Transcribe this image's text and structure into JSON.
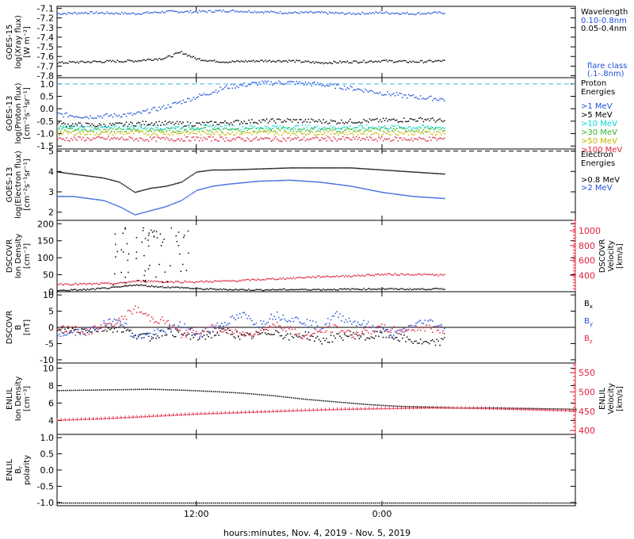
{
  "colors": {
    "black": "#000000",
    "blue": "#1f4fd8",
    "cyan": "#00d8d8",
    "green": "#2db82d",
    "yellow": "#c8b400",
    "orange": "#f07a10",
    "red": "#e0203a",
    "dashed_cyan": "#3ab8e8"
  },
  "xaxis": {
    "label": "hours:minutes, Nov.  4, 2019 - Nov.  5, 2019",
    "ticks": [
      "12:00",
      "0:00"
    ],
    "tick_hours": [
      12,
      24
    ],
    "range_hours": [
      3,
      36.5
    ]
  },
  "chart_data": [
    {
      "type": "scatter",
      "panel": "goes15-xray",
      "ylabel": [
        "GOES-15",
        "log(Xray flux)",
        "[W m⁻²]"
      ],
      "ylim": [
        -7.82,
        -7.08
      ],
      "yticks": [
        -7.1,
        -7.2,
        -7.3,
        -7.4,
        -7.5,
        -7.6,
        -7.7,
        -7.8
      ],
      "ytick_labels": [
        "-7.1",
        "-7.2",
        "-7.3",
        "-7.4",
        "-7.5",
        "-7.6",
        "-7.7",
        "-7.8"
      ],
      "legend_title": "Wavelength",
      "series": [
        {
          "name": "0.10-0.8nm",
          "color_key": "blue",
          "x": [
            3,
            5,
            8,
            10,
            12,
            14,
            16,
            18,
            20,
            22,
            24,
            26,
            28
          ],
          "y": [
            -7.15,
            -7.14,
            -7.15,
            -7.13,
            -7.13,
            -7.12,
            -7.13,
            -7.14,
            -7.14,
            -7.15,
            -7.14,
            -7.15,
            -7.14
          ]
        },
        {
          "name": "0.05-0.4nm",
          "color_key": "black",
          "x": [
            3,
            5,
            8,
            10,
            11,
            12,
            13,
            14,
            16,
            18,
            20,
            22,
            24,
            26,
            28
          ],
          "y": [
            -7.66,
            -7.65,
            -7.64,
            -7.61,
            -7.55,
            -7.62,
            -7.64,
            -7.65,
            -7.64,
            -7.64,
            -7.66,
            -7.65,
            -7.64,
            -7.65,
            -7.64
          ]
        }
      ],
      "threshold_label": [
        "flare class",
        "(.1-.8nm)"
      ]
    },
    {
      "type": "scatter",
      "panel": "goes13-proton",
      "ylabel": [
        "GOES-13",
        "log(Proton flux)",
        "[cm⁻²s⁻¹sr⁻¹]"
      ],
      "ylim": [
        -1.62,
        1.25
      ],
      "yticks": [
        1.0,
        0.5,
        0.0,
        -0.5,
        -1.0,
        -1.5
      ],
      "ytick_labels": [
        "1.0",
        "0.5",
        "0.0",
        "-0.5",
        "-1.0",
        "-1.5"
      ],
      "dashed_line_y": 1.0,
      "legend_title": [
        "Proton",
        "Energies"
      ],
      "series": [
        {
          "name": ">1 MeV",
          "color_key": "blue",
          "x": [
            3,
            5,
            8,
            10,
            12,
            14,
            16,
            18,
            20,
            22,
            24,
            26,
            28
          ],
          "y": [
            -0.2,
            -0.3,
            -0.2,
            0.1,
            0.5,
            0.9,
            1.05,
            1.08,
            1.0,
            0.85,
            0.65,
            0.5,
            0.4
          ]
        },
        {
          "name": ">5 MeV",
          "color_key": "black",
          "x": [
            3,
            6,
            9,
            12,
            15,
            18,
            21,
            24,
            27,
            28
          ],
          "y": [
            -0.6,
            -0.65,
            -0.55,
            -0.6,
            -0.5,
            -0.45,
            -0.5,
            -0.45,
            -0.4,
            -0.5
          ]
        },
        {
          "name": ">10 MeV",
          "color_key": "cyan",
          "x": [
            3,
            6,
            9,
            12,
            15,
            18,
            21,
            24,
            27,
            28
          ],
          "y": [
            -0.72,
            -0.75,
            -0.72,
            -0.73,
            -0.72,
            -0.72,
            -0.73,
            -0.72,
            -0.72,
            -0.73
          ]
        },
        {
          "name": ">30 MeV",
          "color_key": "green",
          "x": [
            3,
            6,
            9,
            12,
            15,
            18,
            21,
            24,
            27,
            28
          ],
          "y": [
            -0.82,
            -0.83,
            -0.82,
            -0.82,
            -0.83,
            -0.82,
            -0.82,
            -0.82,
            -0.83,
            -0.82
          ]
        },
        {
          "name": ">50 MeV",
          "color_key": "yellow",
          "x": [
            3,
            6,
            9,
            12,
            15,
            18,
            21,
            24,
            27,
            28
          ],
          "y": [
            -0.95,
            -0.95,
            -0.95,
            -0.95,
            -0.95,
            -0.95,
            -0.95,
            -0.95,
            -0.95,
            -0.95
          ]
        },
        {
          "name": ">100 MeV",
          "color_key": "red",
          "x": [
            3,
            6,
            9,
            12,
            15,
            18,
            21,
            24,
            27,
            28
          ],
          "y": [
            -1.2,
            -1.18,
            -1.2,
            -1.19,
            -1.2,
            -1.2,
            -1.19,
            -1.2,
            -1.2,
            -1.19
          ]
        }
      ]
    },
    {
      "type": "line",
      "panel": "goes13-electron",
      "ylabel": [
        "GOES-13",
        "log(Electron flux)",
        "[cm⁻²s⁻¹sr⁻¹]"
      ],
      "ylim": [
        1.6,
        5.1
      ],
      "yticks": [
        5,
        4,
        3,
        2
      ],
      "ytick_labels": [
        "5",
        "4",
        "3",
        "2"
      ],
      "dashed_line_y": 5.0,
      "legend_title": [
        "Electron",
        "Energies"
      ],
      "series": [
        {
          "name": ">0.8 MeV",
          "color_key": "black",
          "x": [
            3,
            4,
            5,
            6,
            7,
            8,
            9,
            10,
            11,
            12,
            13,
            14,
            16,
            18,
            20,
            22,
            24,
            26,
            28
          ],
          "y": [
            4.0,
            3.9,
            3.8,
            3.7,
            3.5,
            3.0,
            3.2,
            3.3,
            3.5,
            4.0,
            4.1,
            4.1,
            4.15,
            4.2,
            4.2,
            4.2,
            4.1,
            4.0,
            3.9
          ]
        },
        {
          "name": ">2 MeV",
          "color_key": "blue",
          "x": [
            3,
            4,
            5,
            6,
            7,
            8,
            9,
            10,
            11,
            12,
            13,
            14,
            16,
            18,
            20,
            22,
            24,
            26,
            28
          ],
          "y": [
            2.8,
            2.8,
            2.7,
            2.6,
            2.3,
            1.9,
            2.1,
            2.3,
            2.6,
            3.1,
            3.3,
            3.4,
            3.55,
            3.6,
            3.5,
            3.3,
            3.0,
            2.8,
            2.7
          ]
        }
      ]
    },
    {
      "type": "scatter",
      "panel": "dscovr-density-velocity",
      "ylabel": [
        "DSCOVR",
        "Ion Density",
        "[cm⁻³]"
      ],
      "ylim": [
        0,
        210
      ],
      "yticks": [
        200,
        150,
        100,
        50,
        0
      ],
      "ytick_labels": [
        "200",
        "150",
        "100",
        "50",
        "0"
      ],
      "ylabel_right": [
        "DSCOVR",
        "Velocity",
        "[km/s]"
      ],
      "ylim_right": [
        180,
        1140
      ],
      "yticks_right": [
        1000,
        800,
        600,
        400
      ],
      "ytick_labels_right": [
        "1000",
        "800",
        "600",
        "400"
      ],
      "series": [
        {
          "name": "Ion Density",
          "color_key": "black",
          "x": [
            3,
            5,
            7,
            8,
            9,
            10,
            11,
            12,
            14,
            16,
            18,
            20,
            22,
            24,
            26,
            28
          ],
          "y": [
            5,
            8,
            15,
            22,
            18,
            15,
            14,
            10,
            8,
            7,
            8,
            8,
            9,
            10,
            9,
            10
          ]
        },
        {
          "name": "Velocity",
          "color_key": "red",
          "x": [
            3,
            5,
            7,
            8,
            9,
            10,
            11,
            12,
            14,
            16,
            18,
            20,
            22,
            24,
            26,
            28
          ],
          "y": [
            290,
            290,
            300,
            330,
            330,
            320,
            320,
            320,
            330,
            350,
            370,
            390,
            400,
            420,
            420,
            410
          ]
        }
      ]
    },
    {
      "type": "scatter",
      "panel": "dscovr-b",
      "ylabel": [
        "DSCOVR",
        "B",
        "[nT]"
      ],
      "ylim": [
        -11,
        11
      ],
      "yticks": [
        10,
        5,
        0,
        -5,
        -10
      ],
      "ytick_labels": [
        "10",
        "5",
        "0",
        "-5",
        "-10"
      ],
      "legend": [
        {
          "label": "B",
          "sub": "x",
          "color_key": "black"
        },
        {
          "label": "B",
          "sub": "y",
          "color_key": "blue"
        },
        {
          "label": "B",
          "sub": "z",
          "color_key": "red"
        }
      ],
      "series": [
        {
          "name": "Bx",
          "color_key": "black",
          "x": [
            3,
            5,
            7,
            8,
            9,
            10,
            11,
            12,
            13,
            14,
            15,
            16,
            17,
            18,
            19,
            20,
            21,
            22,
            23,
            24,
            25,
            26,
            27,
            28
          ],
          "y": [
            -1,
            -0.5,
            0,
            -2,
            -3,
            -1,
            -2,
            -3,
            -2,
            -1,
            -3,
            -2,
            -1,
            -3,
            -2,
            -4,
            -3,
            -2,
            -3,
            -2,
            -3,
            -4,
            -5,
            -4
          ]
        },
        {
          "name": "By",
          "color_key": "blue",
          "x": [
            3,
            5,
            7,
            8,
            9,
            10,
            11,
            12,
            13,
            14,
            15,
            16,
            17,
            18,
            19,
            20,
            21,
            22,
            23,
            24,
            25,
            26,
            27,
            28
          ],
          "y": [
            -2,
            -1,
            3,
            -3,
            -2,
            -1,
            1,
            -2,
            0,
            2,
            4,
            1,
            4,
            3,
            2,
            0,
            4,
            2,
            1,
            -1,
            -2,
            1,
            2,
            0
          ]
        },
        {
          "name": "Bz",
          "color_key": "red",
          "x": [
            3,
            5,
            7,
            8,
            9,
            10,
            11,
            12,
            13,
            14,
            15,
            16,
            17,
            18,
            19,
            20,
            21,
            22,
            23,
            24,
            25,
            26,
            27,
            28
          ],
          "y": [
            0,
            -1,
            2,
            6,
            3,
            2,
            -2,
            -1,
            0,
            -1,
            -2,
            -1,
            1,
            0,
            -3,
            -1,
            0,
            -2,
            -1,
            0,
            -1,
            0,
            0,
            -1
          ]
        }
      ]
    },
    {
      "type": "line",
      "panel": "enlil-density-velocity",
      "ylabel": [
        "ENLIL",
        "Ion Density",
        "[cm⁻³]"
      ],
      "ylim": [
        2.4,
        10.6
      ],
      "yticks": [
        10,
        8,
        6,
        4
      ],
      "ytick_labels": [
        "10",
        "8",
        "6",
        "4"
      ],
      "ylabel_right": [
        "ENLIL",
        "Velocity",
        "[km/s]"
      ],
      "ylim_right": [
        390,
        575
      ],
      "yticks_right": [
        550,
        500,
        450,
        400
      ],
      "ytick_labels_right": [
        "550",
        "500",
        "450",
        "400"
      ],
      "series": [
        {
          "name": "Ion Density",
          "color_key": "black",
          "x": [
            3,
            5,
            7,
            9,
            11,
            13,
            15,
            17,
            19,
            21,
            23,
            25,
            27,
            29,
            31,
            33,
            35,
            36.5
          ],
          "y": [
            7.5,
            7.55,
            7.6,
            7.65,
            7.55,
            7.4,
            7.2,
            6.9,
            6.5,
            6.2,
            5.9,
            5.7,
            5.6,
            5.5,
            5.5,
            5.45,
            5.4,
            5.35
          ]
        },
        {
          "name": "Velocity",
          "color_key": "red",
          "x": [
            3,
            6,
            9,
            12,
            15,
            18,
            21,
            24,
            27,
            30,
            33,
            36.5
          ],
          "y": [
            428,
            432,
            438,
            444,
            448,
            452,
            456,
            458,
            460,
            459,
            456,
            452
          ]
        }
      ]
    },
    {
      "type": "line",
      "panel": "enlil-polarity",
      "ylabel": [
        "ENLIL",
        "B",
        "polarity"
      ],
      "ylabel_sub": "r",
      "ylim": [
        -1.1,
        1.1
      ],
      "yticks": [
        1.0,
        0.5,
        0.0,
        -0.5,
        -1.0
      ],
      "ytick_labels": [
        "1.0",
        "0.5",
        "0.0",
        "-0.5",
        "-1.0"
      ],
      "series": [
        {
          "name": "Polarity",
          "color_key": "black",
          "x": [
            3,
            8,
            13,
            18,
            23,
            28,
            33,
            36.5
          ],
          "y": [
            -1,
            -1,
            -1,
            -1,
            -1,
            -1,
            -1,
            -1
          ]
        }
      ]
    }
  ]
}
